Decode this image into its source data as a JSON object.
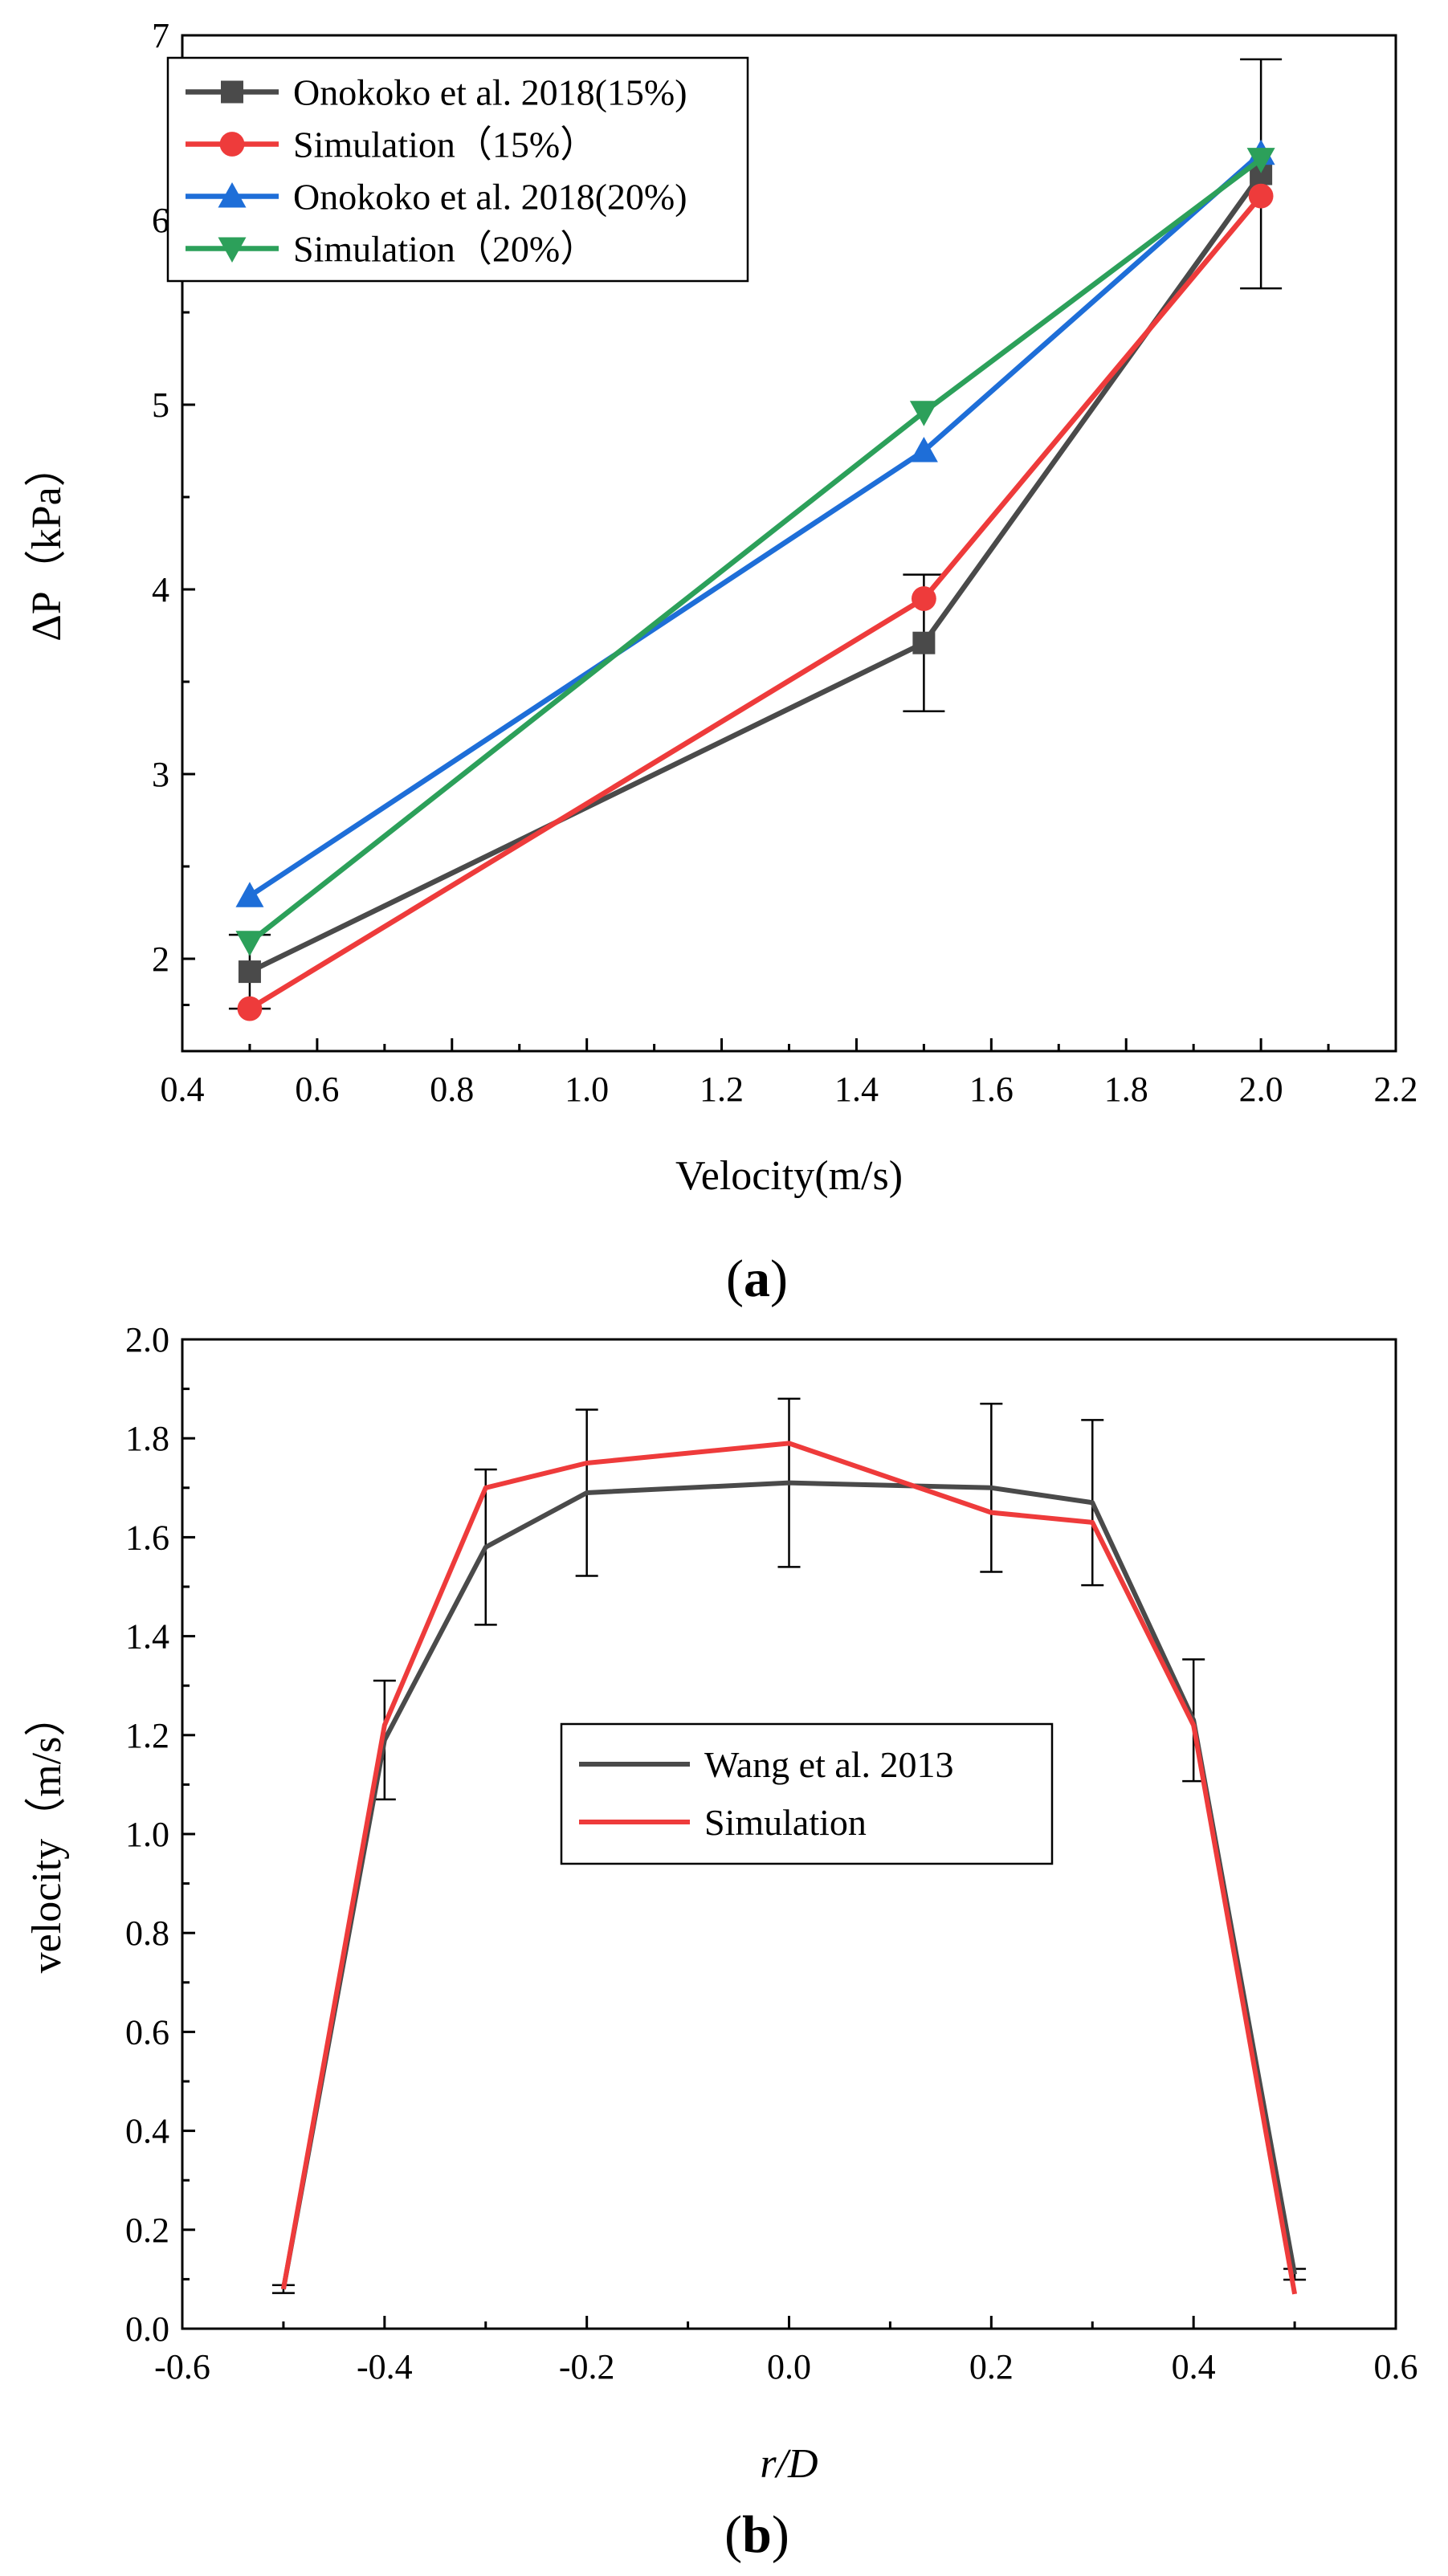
{
  "chart_data": [
    {
      "type": "line",
      "panel_label": "a",
      "title": "",
      "xlabel": "Velocity(m/s)",
      "ylabel": "ΔP（kPa）",
      "xlim": [
        0.4,
        2.2
      ],
      "ylim": [
        1.5,
        7
      ],
      "xticks": [
        0.4,
        0.6,
        0.8,
        1.0,
        1.2,
        1.4,
        1.6,
        1.8,
        2.0,
        2.2
      ],
      "xtick_labels": [
        "0.4",
        "0.6",
        "0.8",
        "1.0",
        "1.2",
        "1.4",
        "1.6",
        "1.8",
        "2.0",
        "2.2"
      ],
      "yticks": [
        2,
        3,
        4,
        5,
        6,
        7
      ],
      "ytick_labels": [
        "2",
        "3",
        "4",
        "5",
        "6",
        "7"
      ],
      "legend_position": "top-left",
      "series": [
        {
          "name": "Onokoko et al. 2018(15%)",
          "color": "#4a4a4a",
          "marker": "square",
          "x": [
            0.5,
            1.5,
            2.0
          ],
          "y": [
            1.93,
            3.71,
            6.25
          ],
          "yerr": [
            0.2,
            0.37,
            0.62
          ]
        },
        {
          "name": "Simulation（15%）",
          "color": "#ee3b3b",
          "marker": "circle",
          "x": [
            0.5,
            1.5,
            2.0
          ],
          "y": [
            1.73,
            3.95,
            6.13
          ]
        },
        {
          "name": "Onokoko et al. 2018(20%)",
          "color": "#1e6ed8",
          "marker": "triangle-up",
          "x": [
            0.5,
            1.5,
            2.0
          ],
          "y": [
            2.34,
            4.75,
            6.36
          ]
        },
        {
          "name": "Simulation（20%）",
          "color": "#2ca05a",
          "marker": "triangle-down",
          "x": [
            0.5,
            1.5,
            2.0
          ],
          "y": [
            2.09,
            4.96,
            6.33
          ]
        }
      ]
    },
    {
      "type": "line",
      "panel_label": "b",
      "title": "",
      "xlabel": "r/D",
      "ylabel": "velocity（m/s）",
      "xlim": [
        -0.6,
        0.6
      ],
      "ylim": [
        0,
        2.0
      ],
      "xticks": [
        -0.6,
        -0.4,
        -0.2,
        0.0,
        0.2,
        0.4,
        0.6
      ],
      "xtick_labels": [
        "-0.6",
        "-0.4",
        "-0.2",
        "0.0",
        "0.2",
        "0.4",
        "0.6"
      ],
      "yticks": [
        0,
        0.2,
        0.4,
        0.6,
        0.8,
        1.0,
        1.2,
        1.4,
        1.6,
        1.8,
        2.0
      ],
      "ytick_labels": [
        "0.0",
        "0.2",
        "0.4",
        "0.6",
        "0.8",
        "1.0",
        "1.2",
        "1.4",
        "1.6",
        "1.8",
        "2.0"
      ],
      "legend_position": "center",
      "series": [
        {
          "name": "Wang et al. 2013",
          "color": "#4a4a4a",
          "x": [
            -0.5,
            -0.4,
            -0.3,
            -0.2,
            0.0,
            0.2,
            0.3,
            0.4,
            0.5
          ],
          "y": [
            0.08,
            1.19,
            1.58,
            1.69,
            1.71,
            1.7,
            1.67,
            1.23,
            0.11
          ],
          "yerr": [
            0.008,
            0.12,
            0.157,
            0.168,
            0.17,
            0.17,
            0.167,
            0.123,
            0.011
          ]
        },
        {
          "name": "Simulation",
          "color": "#ee3b3b",
          "x": [
            -0.5,
            -0.4,
            -0.3,
            -0.2,
            0.0,
            0.2,
            0.3,
            0.4,
            0.5
          ],
          "y": [
            0.08,
            1.22,
            1.7,
            1.75,
            1.79,
            1.65,
            1.63,
            1.22,
            0.07
          ]
        }
      ]
    }
  ]
}
